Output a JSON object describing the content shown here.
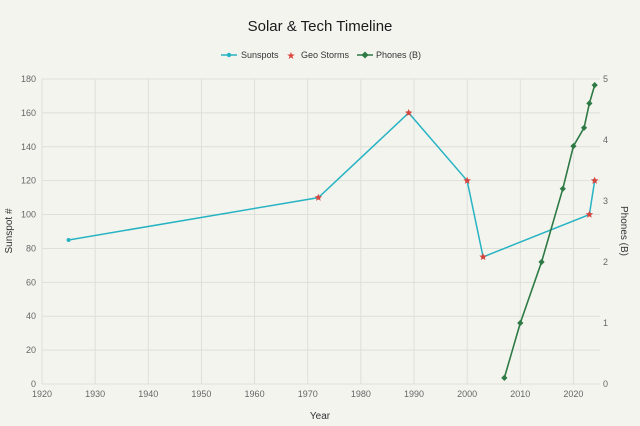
{
  "chart_data": {
    "type": "line",
    "title": "Solar & Tech Timeline",
    "xlabel": "Year",
    "ylabel": "Sunspot #",
    "y2label": "Phones (B)",
    "xlim": [
      1920,
      2025
    ],
    "ylim": [
      0,
      180
    ],
    "y2lim": [
      0,
      5
    ],
    "xticks": [
      1920,
      1930,
      1940,
      1950,
      1960,
      1970,
      1980,
      1990,
      2000,
      2010,
      2020
    ],
    "yticks": [
      0,
      20,
      40,
      60,
      80,
      100,
      120,
      140,
      160,
      180
    ],
    "y2ticks": [
      0,
      1,
      2,
      3,
      4,
      5
    ],
    "grid": true,
    "legend_position": "top-center",
    "colors": {
      "sunspots": "#26b3c2",
      "storms": "#d9453d",
      "phones": "#2d7a45",
      "background": "#f4f4ef",
      "grid": "#dedfd9"
    },
    "series": [
      {
        "name": "Sunspots",
        "axis": "left",
        "style": "line-dot",
        "x": [
          1925,
          1972,
          1989,
          2000,
          2003,
          2023,
          2024
        ],
        "y": [
          85,
          110,
          160,
          120,
          75,
          100,
          120
        ]
      },
      {
        "name": "Geo Storms",
        "axis": "left",
        "style": "star",
        "x": [
          1972,
          1989,
          2000,
          2003,
          2023,
          2024
        ],
        "y": [
          110,
          160,
          120,
          75,
          100,
          120
        ]
      },
      {
        "name": "Phones (B)",
        "axis": "right",
        "style": "line-diamond",
        "x": [
          2007,
          2010,
          2014,
          2018,
          2020,
          2022,
          2023,
          2024
        ],
        "y": [
          0.1,
          1.0,
          2.0,
          3.2,
          3.9,
          4.2,
          4.6,
          4.9
        ]
      }
    ]
  }
}
